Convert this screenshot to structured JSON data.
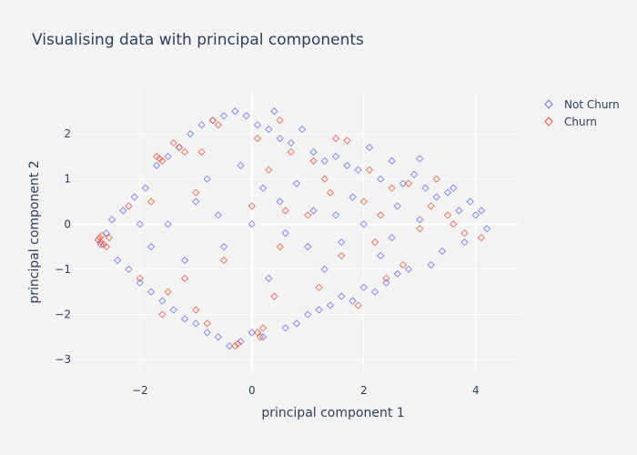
{
  "chart_data": {
    "type": "scatter",
    "title": "Visualising data with principal components",
    "xlabel": "principal component 1",
    "ylabel": "principal component 2",
    "xlim": [
      -3.2,
      4.8
    ],
    "ylim": [
      -3.3,
      2.95
    ],
    "x_ticks": [
      -2,
      0,
      2,
      4
    ],
    "x_tick_labels": [
      "−2",
      "0",
      "2",
      "4"
    ],
    "y_ticks": [
      -3,
      -2,
      -1,
      0,
      1,
      2
    ],
    "y_tick_labels": [
      "−3",
      "−2",
      "−1",
      "0",
      "1",
      "2"
    ],
    "grid": true,
    "legend_position": "top-right",
    "marker": "diamond-open",
    "series": [
      {
        "name": "Not Churn",
        "color": "#636efa",
        "points": [
          [
            -2.7,
            -0.45
          ],
          [
            -2.6,
            -0.2
          ],
          [
            -2.5,
            0.1
          ],
          [
            -2.4,
            -0.8
          ],
          [
            -2.3,
            0.3
          ],
          [
            -2.2,
            -1.0
          ],
          [
            -2.1,
            0.6
          ],
          [
            -2.0,
            -1.3
          ],
          [
            -1.9,
            0.8
          ],
          [
            -1.8,
            -1.5
          ],
          [
            -1.7,
            1.3
          ],
          [
            -1.6,
            -1.7
          ],
          [
            -1.5,
            1.5
          ],
          [
            -1.4,
            -1.9
          ],
          [
            -1.3,
            1.7
          ],
          [
            -1.2,
            -2.1
          ],
          [
            -1.1,
            2.0
          ],
          [
            -1.0,
            -2.2
          ],
          [
            -0.9,
            2.2
          ],
          [
            -0.8,
            -2.4
          ],
          [
            -0.7,
            2.3
          ],
          [
            -0.6,
            -2.5
          ],
          [
            -0.5,
            2.4
          ],
          [
            -0.4,
            -2.7
          ],
          [
            -0.3,
            2.5
          ],
          [
            -0.2,
            -2.6
          ],
          [
            -0.1,
            2.4
          ],
          [
            0.0,
            -2.4
          ],
          [
            0.1,
            2.2
          ],
          [
            0.2,
            -2.5
          ],
          [
            0.3,
            2.1
          ],
          [
            0.4,
            2.5
          ],
          [
            0.5,
            1.9
          ],
          [
            0.6,
            -2.3
          ],
          [
            0.7,
            1.8
          ],
          [
            0.8,
            -2.2
          ],
          [
            0.9,
            2.1
          ],
          [
            1.0,
            -2.0
          ],
          [
            1.1,
            1.6
          ],
          [
            1.2,
            -1.9
          ],
          [
            1.3,
            1.4
          ],
          [
            1.4,
            -1.8
          ],
          [
            1.5,
            1.5
          ],
          [
            1.6,
            -1.6
          ],
          [
            1.7,
            1.3
          ],
          [
            1.8,
            -1.7
          ],
          [
            1.9,
            1.2
          ],
          [
            2.0,
            -1.4
          ],
          [
            2.1,
            1.7
          ],
          [
            2.2,
            -1.5
          ],
          [
            2.3,
            1.0
          ],
          [
            2.4,
            -1.3
          ],
          [
            2.5,
            1.4
          ],
          [
            2.6,
            -1.1
          ],
          [
            2.7,
            0.9
          ],
          [
            2.8,
            -1.0
          ],
          [
            2.9,
            1.1
          ],
          [
            3.0,
            1.45
          ],
          [
            3.1,
            0.8
          ],
          [
            3.2,
            -0.9
          ],
          [
            3.3,
            0.6
          ],
          [
            3.4,
            -0.6
          ],
          [
            3.5,
            0.7
          ],
          [
            3.6,
            0.8
          ],
          [
            3.7,
            0.3
          ],
          [
            3.8,
            -0.4
          ],
          [
            3.9,
            0.5
          ],
          [
            4.0,
            0.2
          ],
          [
            4.1,
            0.3
          ],
          [
            4.2,
            -0.1
          ],
          [
            -1.5,
            0.0
          ],
          [
            -1.0,
            0.5
          ],
          [
            -0.5,
            -0.5
          ],
          [
            0.0,
            0.0
          ],
          [
            0.5,
            0.5
          ],
          [
            1.0,
            -0.5
          ],
          [
            1.5,
            0.2
          ],
          [
            2.0,
            0.0
          ],
          [
            2.5,
            -0.3
          ],
          [
            3.0,
            0.1
          ],
          [
            -1.2,
            -0.8
          ],
          [
            -0.8,
            1.0
          ],
          [
            -0.2,
            1.3
          ],
          [
            0.3,
            -1.2
          ],
          [
            0.8,
            0.9
          ],
          [
            1.3,
            -1.0
          ],
          [
            1.8,
            0.6
          ],
          [
            2.3,
            -0.7
          ],
          [
            -2.0,
            0.0
          ],
          [
            -1.8,
            -0.5
          ],
          [
            -0.6,
            0.2
          ],
          [
            0.2,
            0.8
          ],
          [
            0.6,
            -0.2
          ],
          [
            1.1,
            0.3
          ],
          [
            1.6,
            -0.4
          ],
          [
            2.6,
            0.4
          ]
        ]
      },
      {
        "name": "Churn",
        "color": "#ef553b",
        "points": [
          [
            -2.75,
            -0.35
          ],
          [
            -2.72,
            -0.3
          ],
          [
            -2.7,
            -0.4
          ],
          [
            -2.68,
            -0.25
          ],
          [
            -2.65,
            -0.45
          ],
          [
            -2.6,
            -0.5
          ],
          [
            -2.55,
            -0.3
          ],
          [
            -1.7,
            1.5
          ],
          [
            -1.65,
            1.45
          ],
          [
            -1.6,
            1.4
          ],
          [
            -1.4,
            1.8
          ],
          [
            -1.3,
            1.7
          ],
          [
            -1.2,
            1.6
          ],
          [
            -0.7,
            2.3
          ],
          [
            -0.6,
            2.2
          ],
          [
            -0.3,
            -2.7
          ],
          [
            -0.25,
            -2.65
          ],
          [
            0.1,
            -2.4
          ],
          [
            0.15,
            -2.5
          ],
          [
            0.2,
            -2.3
          ],
          [
            0.1,
            1.9
          ],
          [
            0.3,
            1.2
          ],
          [
            0.5,
            2.3
          ],
          [
            1.1,
            1.4
          ],
          [
            1.5,
            1.9
          ],
          [
            1.7,
            1.85
          ],
          [
            1.3,
            1.0
          ],
          [
            2.0,
            0.5
          ],
          [
            2.3,
            0.2
          ],
          [
            2.5,
            0.8
          ],
          [
            2.8,
            0.9
          ],
          [
            3.0,
            -0.1
          ],
          [
            3.3,
            1.0
          ],
          [
            3.6,
            0.0
          ],
          [
            4.1,
            -0.3
          ],
          [
            3.8,
            -0.2
          ],
          [
            -1.8,
            0.5
          ],
          [
            -1.0,
            0.7
          ],
          [
            -0.5,
            -0.8
          ],
          [
            -2.0,
            -1.2
          ],
          [
            -1.5,
            -1.5
          ],
          [
            -1.0,
            -1.9
          ],
          [
            0.5,
            -0.5
          ],
          [
            1.0,
            0.2
          ],
          [
            1.6,
            -0.7
          ],
          [
            2.2,
            -0.4
          ],
          [
            2.7,
            -0.9
          ],
          [
            -0.9,
            1.6
          ],
          [
            0.0,
            0.4
          ],
          [
            0.7,
            1.6
          ],
          [
            1.4,
            0.7
          ],
          [
            -2.2,
            0.4
          ],
          [
            -1.2,
            -1.2
          ],
          [
            0.4,
            -1.6
          ],
          [
            1.2,
            -1.4
          ],
          [
            1.9,
            -1.8
          ],
          [
            2.4,
            -1.2
          ],
          [
            3.2,
            0.4
          ],
          [
            3.5,
            0.2
          ],
          [
            -1.6,
            -2.0
          ],
          [
            -0.8,
            -2.2
          ],
          [
            0.6,
            0.3
          ],
          [
            2.1,
            1.2
          ]
        ]
      }
    ]
  }
}
